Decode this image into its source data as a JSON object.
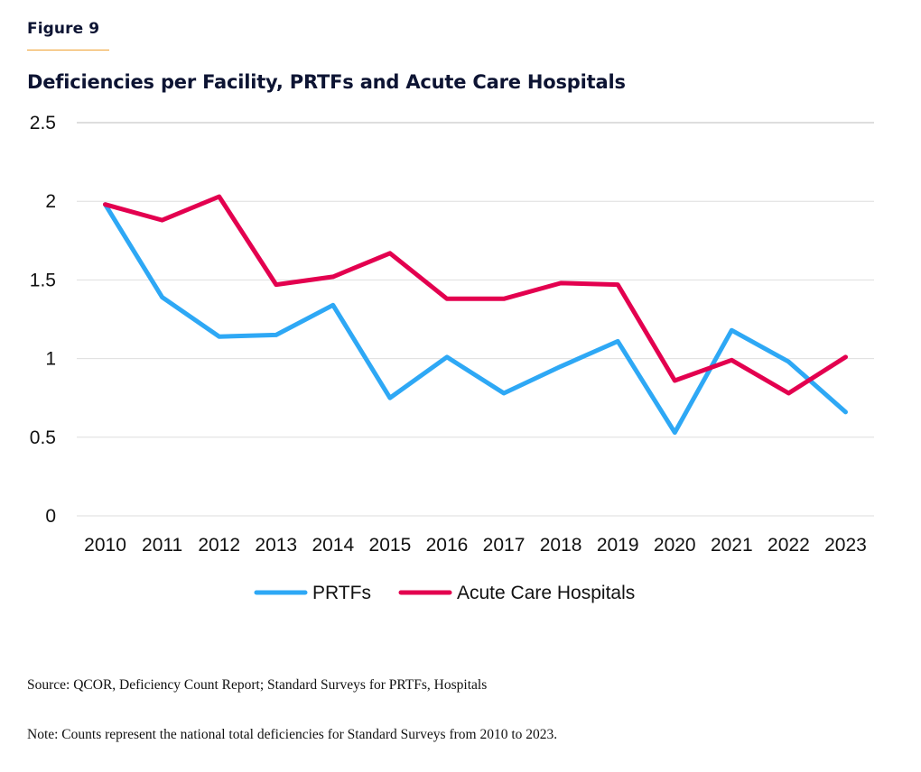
{
  "figure_label": "Figure 9",
  "colors": {
    "prtf": "#2ea8f5",
    "hospital": "#e3004f",
    "title": "#0d1433",
    "accent_rule": "#f0a030"
  },
  "footer": {
    "source": "Source: QCOR, Deficiency Count Report; Standard Surveys for PRTFs, Hospitals",
    "note": "Note: Counts represent the national total deficiencies for Standard Surveys from 2010 to 2023."
  },
  "chart_data": {
    "type": "line",
    "title": "Deficiencies per Facility, PRTFs and Acute Care Hospitals",
    "xlabel": "",
    "ylabel": "",
    "categories": [
      "2010",
      "2011",
      "2012",
      "2013",
      "2014",
      "2015",
      "2016",
      "2017",
      "2018",
      "2019",
      "2020",
      "2021",
      "2022",
      "2023"
    ],
    "series": [
      {
        "name": "PRTFs",
        "color": "#2ea8f5",
        "values": [
          1.98,
          1.39,
          1.14,
          1.15,
          1.34,
          0.75,
          1.01,
          0.78,
          0.95,
          1.11,
          0.53,
          1.18,
          0.98,
          0.66
        ]
      },
      {
        "name": "Acute Care Hospitals",
        "color": "#e3004f",
        "values": [
          1.98,
          1.88,
          2.03,
          1.47,
          1.52,
          1.67,
          1.38,
          1.38,
          1.48,
          1.47,
          0.86,
          0.99,
          0.78,
          1.01
        ]
      }
    ],
    "ylim": [
      0,
      2.5
    ],
    "yticks": [
      0,
      0.5,
      1,
      1.5,
      2,
      2.5
    ],
    "ytick_labels": [
      "0",
      "0.5",
      "1",
      "1.5",
      "2",
      "2.5"
    ],
    "grid": true,
    "legend_position": "bottom-center"
  }
}
